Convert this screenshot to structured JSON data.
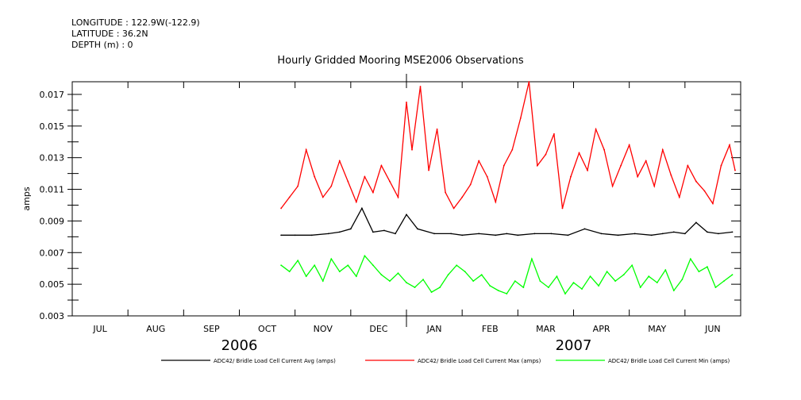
{
  "header": {
    "longitude": "LONGITUDE : 122.9W(-122.9)",
    "latitude": "LATITUDE : 36.2N",
    "depth": "DEPTH (m) : 0"
  },
  "chart_data": {
    "type": "line",
    "title": "Hourly Gridded Mooring MSE2006 Observations",
    "xlabel": "",
    "ylabel": "amps",
    "ylim": [
      0.003,
      0.0178
    ],
    "yticks_labeled": [
      "0.017",
      "0.015",
      "0.013",
      "0.011",
      "0.009",
      "0.007",
      "0.005",
      "0.003"
    ],
    "xlim_months": [
      0,
      12
    ],
    "x_month_labels": [
      "JUL",
      "AUG",
      "SEP",
      "OCT",
      "NOV",
      "DEC",
      "JAN",
      "FEB",
      "MAR",
      "APR",
      "MAY",
      "JUN"
    ],
    "x_year_labels": [
      {
        "year": "2006",
        "month": 3
      },
      {
        "year": "2007",
        "month": 9
      }
    ],
    "series": [
      {
        "name": "ADC42/ Bridle Load Cell Current Avg (amps)",
        "color": "#000000",
        "x": [
          3.75,
          4.0,
          4.3,
          4.6,
          4.8,
          5.0,
          5.2,
          5.4,
          5.6,
          5.8,
          6.0,
          6.2,
          6.5,
          6.8,
          7.0,
          7.3,
          7.6,
          7.8,
          8.0,
          8.3,
          8.6,
          8.9,
          9.2,
          9.5,
          9.8,
          10.1,
          10.4,
          10.6,
          10.8,
          11.0,
          11.2,
          11.4,
          11.6,
          11.85
        ],
        "values": [
          0.0081,
          0.0081,
          0.0081,
          0.0082,
          0.0083,
          0.0085,
          0.0098,
          0.0083,
          0.0084,
          0.0082,
          0.0094,
          0.0085,
          0.0082,
          0.0082,
          0.0081,
          0.0082,
          0.0081,
          0.0082,
          0.0081,
          0.0082,
          0.0082,
          0.0081,
          0.0085,
          0.0082,
          0.0081,
          0.0082,
          0.0081,
          0.0082,
          0.0083,
          0.0082,
          0.0089,
          0.0083,
          0.0082,
          0.0083
        ]
      },
      {
        "name": "ADC42/ Bridle Load Cell Current Max (amps)",
        "color": "#ff0000",
        "x": [
          3.75,
          3.9,
          4.05,
          4.2,
          4.35,
          4.5,
          4.65,
          4.8,
          4.95,
          5.1,
          5.25,
          5.4,
          5.55,
          5.7,
          5.85,
          6.0,
          6.1,
          6.25,
          6.4,
          6.55,
          6.7,
          6.85,
          7.0,
          7.15,
          7.3,
          7.45,
          7.6,
          7.75,
          7.9,
          8.05,
          8.2,
          8.35,
          8.5,
          8.65,
          8.8,
          8.95,
          9.1,
          9.25,
          9.4,
          9.55,
          9.7,
          9.85,
          10.0,
          10.15,
          10.3,
          10.45,
          10.6,
          10.75,
          10.9,
          11.05,
          11.2,
          11.35,
          11.5,
          11.65,
          11.8,
          11.9
        ],
        "values": [
          0.0098,
          0.0105,
          0.0112,
          0.0135,
          0.0118,
          0.0105,
          0.0112,
          0.0128,
          0.0115,
          0.0102,
          0.0118,
          0.0108,
          0.0125,
          0.0115,
          0.0105,
          0.0165,
          0.0135,
          0.0175,
          0.0122,
          0.0148,
          0.0108,
          0.0098,
          0.0105,
          0.0113,
          0.0128,
          0.0118,
          0.0102,
          0.0125,
          0.0135,
          0.0155,
          0.0178,
          0.0125,
          0.0132,
          0.0145,
          0.0098,
          0.0118,
          0.0133,
          0.0122,
          0.0148,
          0.0135,
          0.0112,
          0.0125,
          0.0138,
          0.0118,
          0.0128,
          0.0112,
          0.0135,
          0.0119,
          0.0105,
          0.0125,
          0.0115,
          0.0109,
          0.0101,
          0.0125,
          0.0138,
          0.0122
        ]
      },
      {
        "name": "ADC42/ Bridle Load Cell Current Min (amps)",
        "color": "#00ff00",
        "x": [
          3.75,
          3.9,
          4.05,
          4.2,
          4.35,
          4.5,
          4.65,
          4.8,
          4.95,
          5.1,
          5.25,
          5.4,
          5.55,
          5.7,
          5.85,
          6.0,
          6.15,
          6.3,
          6.45,
          6.6,
          6.75,
          6.9,
          7.05,
          7.2,
          7.35,
          7.5,
          7.65,
          7.8,
          7.95,
          8.1,
          8.25,
          8.4,
          8.55,
          8.7,
          8.85,
          9.0,
          9.15,
          9.3,
          9.45,
          9.6,
          9.75,
          9.9,
          10.05,
          10.2,
          10.35,
          10.5,
          10.65,
          10.8,
          10.95,
          11.1,
          11.25,
          11.4,
          11.55,
          11.7,
          11.85
        ],
        "values": [
          0.0062,
          0.0058,
          0.0065,
          0.0055,
          0.0062,
          0.0052,
          0.0066,
          0.0058,
          0.0062,
          0.0055,
          0.0068,
          0.0062,
          0.0056,
          0.0052,
          0.0057,
          0.0051,
          0.0048,
          0.0053,
          0.0045,
          0.0048,
          0.0056,
          0.0062,
          0.0058,
          0.0052,
          0.0056,
          0.0049,
          0.0046,
          0.0044,
          0.0052,
          0.0048,
          0.0066,
          0.0052,
          0.0048,
          0.0055,
          0.0044,
          0.0051,
          0.0047,
          0.0055,
          0.0049,
          0.0058,
          0.0052,
          0.0056,
          0.0062,
          0.0048,
          0.0055,
          0.0051,
          0.0059,
          0.0046,
          0.0053,
          0.0066,
          0.0058,
          0.0061,
          0.0048,
          0.0052,
          0.0056
        ]
      }
    ],
    "grid": false,
    "legend": "bottom"
  }
}
